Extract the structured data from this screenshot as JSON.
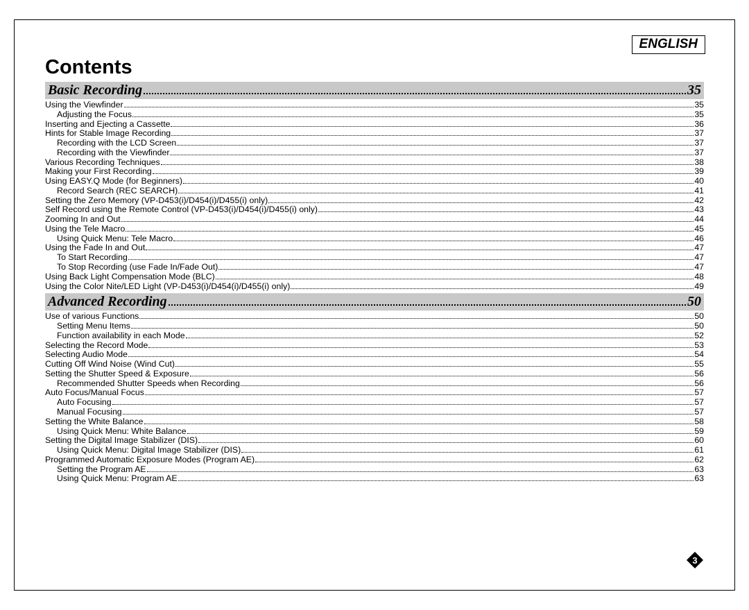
{
  "language_label": "ENGLISH",
  "page_number": "3",
  "title": "Contents",
  "colors": {
    "section_bg": "#c8c8c8",
    "text": "#000000",
    "badge_fill": "#000000",
    "badge_text": "#ffffff"
  },
  "sections": [
    {
      "heading": "Basic Recording",
      "page": "35",
      "entries": [
        {
          "indent": 0,
          "text": "Using the Viewfinder",
          "page": "35"
        },
        {
          "indent": 1,
          "text": "Adjusting the Focus",
          "page": "35"
        },
        {
          "indent": 0,
          "text": "Inserting and Ejecting a Cassette",
          "page": "36"
        },
        {
          "indent": 0,
          "text": "Hints for Stable Image Recording",
          "page": "37"
        },
        {
          "indent": 1,
          "text": "Recording with the LCD Screen",
          "page": "37"
        },
        {
          "indent": 1,
          "text": "Recording with the Viewfinder",
          "page": "37"
        },
        {
          "indent": 0,
          "text": "Various Recording Techniques",
          "page": "38"
        },
        {
          "indent": 0,
          "text": "Making your First Recording",
          "page": "39"
        },
        {
          "indent": 0,
          "text": "Using EASY.Q Mode (for Beginners)",
          "page": "40"
        },
        {
          "indent": 1,
          "text": "Record Search (REC SEARCH)",
          "page": "41"
        },
        {
          "indent": 0,
          "text": "Setting the Zero Memory (VP-D453(i)/D454(i)/D455(i) only)",
          "page": "42"
        },
        {
          "indent": 0,
          "text": "Self Record using the Remote Control (VP-D453(i)/D454(i)/D455(i) only)",
          "page": "43"
        },
        {
          "indent": 0,
          "text": "Zooming In and Out",
          "page": "44"
        },
        {
          "indent": 0,
          "text": "Using the Tele Macro",
          "page": "45"
        },
        {
          "indent": 1,
          "text": "Using Quick Menu: Tele Macro",
          "page": "46"
        },
        {
          "indent": 0,
          "text": "Using the Fade In and Out",
          "page": "47"
        },
        {
          "indent": 1,
          "text": "To Start Recording",
          "page": "47"
        },
        {
          "indent": 1,
          "text": "To Stop Recording (use Fade In/Fade Out)",
          "page": "47"
        },
        {
          "indent": 0,
          "text": "Using Back Light Compensation Mode (BLC)",
          "page": "48"
        },
        {
          "indent": 0,
          "text": "Using the Color Nite/LED Light (VP-D453(i)/D454(i)/D455(i) only)",
          "page": "49"
        }
      ]
    },
    {
      "heading": "Advanced Recording",
      "page": "50",
      "entries": [
        {
          "indent": 0,
          "text": "Use of various Functions",
          "page": "50"
        },
        {
          "indent": 1,
          "text": "Setting Menu Items",
          "page": "50"
        },
        {
          "indent": 1,
          "text": "Function availability in each Mode",
          "page": "52"
        },
        {
          "indent": 0,
          "text": "Selecting the Record Mode",
          "page": "53"
        },
        {
          "indent": 0,
          "text": "Selecting Audio Mode",
          "page": "54"
        },
        {
          "indent": 0,
          "text": "Cutting Off Wind Noise (Wind Cut)",
          "page": "55"
        },
        {
          "indent": 0,
          "text": "Setting the Shutter Speed & Exposure",
          "page": "56"
        },
        {
          "indent": 1,
          "text": "Recommended Shutter Speeds when Recording",
          "page": "56"
        },
        {
          "indent": 0,
          "text": "Auto Focus/Manual Focus",
          "page": "57"
        },
        {
          "indent": 1,
          "text": "Auto Focusing",
          "page": "57"
        },
        {
          "indent": 1,
          "text": "Manual Focusing",
          "page": "57"
        },
        {
          "indent": 0,
          "text": "Setting the White Balance",
          "page": "58"
        },
        {
          "indent": 1,
          "text": "Using Quick Menu: White Balance",
          "page": "59"
        },
        {
          "indent": 0,
          "text": "Setting the Digital Image Stabilizer (DIS)",
          "page": "60"
        },
        {
          "indent": 1,
          "text": "Using Quick Menu: Digital Image Stabilizer (DIS)",
          "page": "61"
        },
        {
          "indent": 0,
          "text": "Programmed Automatic Exposure Modes (Program AE)",
          "page": "62"
        },
        {
          "indent": 1,
          "text": "Setting the Program AE",
          "page": "63"
        },
        {
          "indent": 1,
          "text": "Using Quick Menu: Program AE",
          "page": "63"
        }
      ]
    }
  ]
}
